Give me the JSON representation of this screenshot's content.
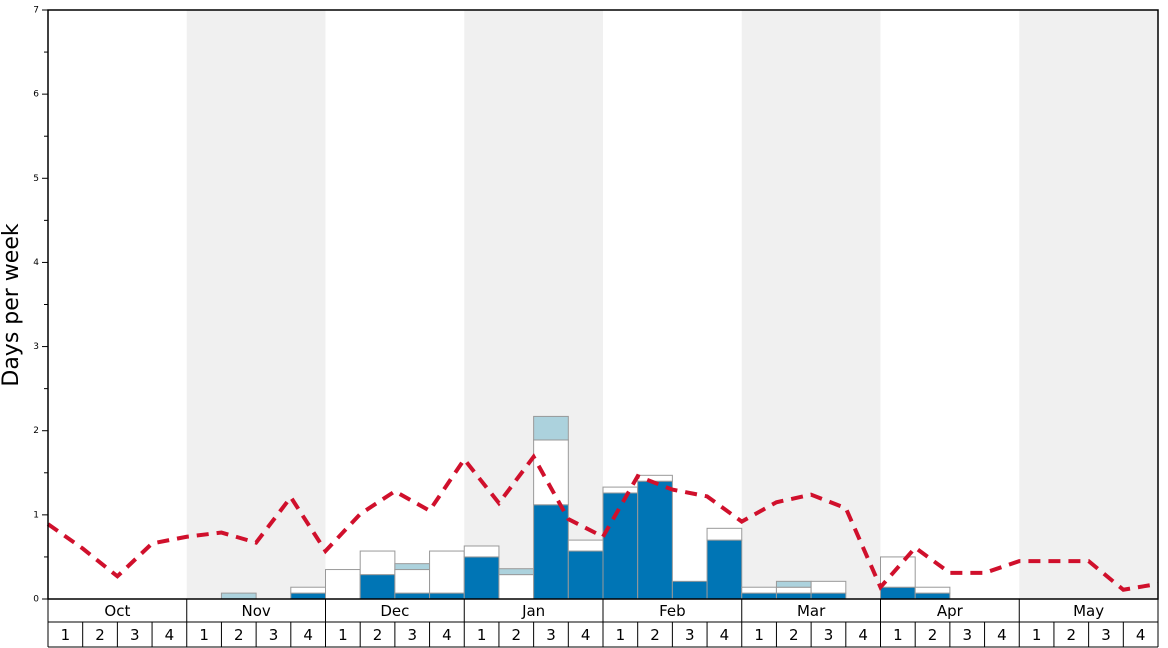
{
  "chart_data": {
    "type": "bar",
    "stacked": true,
    "y_label": "Days per week",
    "months": [
      "Oct",
      "Nov",
      "Dec",
      "Jan",
      "Feb",
      "Mar",
      "Apr",
      "May"
    ],
    "categories": [
      "1",
      "2",
      "3",
      "4",
      "1",
      "2",
      "3",
      "4",
      "1",
      "2",
      "3",
      "4",
      "1",
      "2",
      "3",
      "4",
      "1",
      "2",
      "3",
      "4",
      "1",
      "2",
      "3",
      "4",
      "1",
      "2",
      "3",
      "4",
      "1",
      "2",
      "3",
      "4"
    ],
    "series": [
      {
        "color": "#0075b5",
        "values": [
          0,
          0,
          0,
          0,
          0,
          0,
          0,
          0.07,
          0,
          0.29,
          0.07,
          0.07,
          0.5,
          0,
          1.12,
          0.57,
          1.26,
          1.4,
          0.21,
          0.7,
          0.07,
          0.07,
          0.07,
          0,
          0.14,
          0.07,
          0,
          0,
          0,
          0,
          0,
          0
        ]
      },
      {
        "color": "#ffffff",
        "values": [
          0,
          0,
          0,
          0,
          0,
          0,
          0,
          0.07,
          0.35,
          0.28,
          0.28,
          0.5,
          0.13,
          0.29,
          0.77,
          0.13,
          0.07,
          0.07,
          0,
          0.14,
          0.07,
          0.07,
          0.14,
          0,
          0.36,
          0.07,
          0,
          0,
          0,
          0,
          0,
          0
        ]
      },
      {
        "color": "#acd2dd",
        "values": [
          0,
          0,
          0,
          0,
          0,
          0.07,
          0,
          0,
          0,
          0,
          0.07,
          0,
          0,
          0.07,
          0.28,
          0,
          0,
          0,
          0,
          0,
          0,
          0.07,
          0,
          0,
          0,
          0,
          0,
          0,
          0,
          0,
          0,
          0
        ]
      }
    ],
    "line": {
      "color": "#d0102c",
      "dashed": true,
      "x": [
        0,
        1,
        2,
        3,
        4,
        5,
        6,
        7,
        8,
        9,
        10,
        11,
        12,
        13,
        14,
        15,
        16,
        17,
        18,
        19,
        20,
        21,
        22,
        23,
        24,
        25,
        26,
        27,
        28,
        29,
        30,
        31,
        32
      ],
      "values": [
        0.89,
        0.6,
        0.27,
        0.66,
        0.74,
        0.79,
        0.67,
        1.21,
        0.57,
        1.01,
        1.28,
        1.05,
        1.66,
        1.14,
        1.69,
        0.95,
        0.74,
        1.46,
        1.3,
        1.22,
        0.92,
        1.15,
        1.24,
        1.08,
        0.14,
        0.61,
        0.31,
        0.31,
        0.45,
        0.45,
        0.45,
        0.11,
        0.18
      ]
    },
    "xlim": [
      0,
      32
    ],
    "ylim": [
      0,
      7
    ],
    "yticks": [
      0,
      1,
      2,
      3,
      4,
      5,
      6,
      7
    ],
    "yticks_minor": [
      0.5,
      1.5,
      2.5,
      3.5,
      4.5,
      5.5,
      6.5
    ]
  }
}
